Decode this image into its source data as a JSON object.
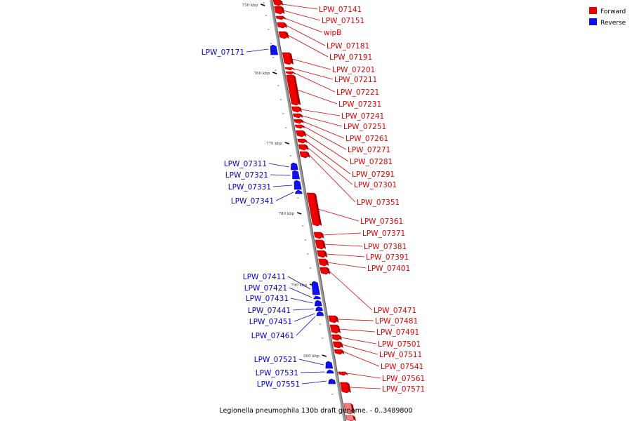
{
  "caption": "Legionella pneumophila 130b draft genome. - 0..3489800",
  "legend": [
    {
      "label": "Forward",
      "color": "#ee0000"
    },
    {
      "label": "Reverse",
      "color": "#1010ee"
    }
  ],
  "ticks": [
    "750 kbp",
    "760 kbp",
    "770 kbp",
    "780 kbp",
    "790 kbp",
    "800 kbp"
  ],
  "forward_genes": [
    "LPW_07141",
    "LPW_07151",
    "wipB",
    "LPW_07181",
    "LPW_07191",
    "LPW_07201",
    "LPW_07211",
    "LPW_07221",
    "LPW_07231",
    "LPW_07241",
    "LPW_07251",
    "LPW_07261",
    "LPW_07271",
    "LPW_07281",
    "LPW_07291",
    "LPW_07301",
    "LPW_07351",
    "LPW_07361",
    "LPW_07371",
    "LPW_07381",
    "LPW_07391",
    "LPW_07401",
    "LPW_07471",
    "LPW_07481",
    "LPW_07491",
    "LPW_07501",
    "LPW_07511",
    "LPW_07541",
    "LPW_07561",
    "LPW_07571"
  ],
  "reverse_genes": [
    "LPW_07171",
    "LPW_07311",
    "LPW_07321",
    "LPW_07331",
    "LPW_07341",
    "LPW_07411",
    "LPW_07421",
    "LPW_07431",
    "LPW_07441",
    "LPW_07451",
    "LPW_07461",
    "LPW_07521",
    "LPW_07531",
    "LPW_07551"
  ]
}
